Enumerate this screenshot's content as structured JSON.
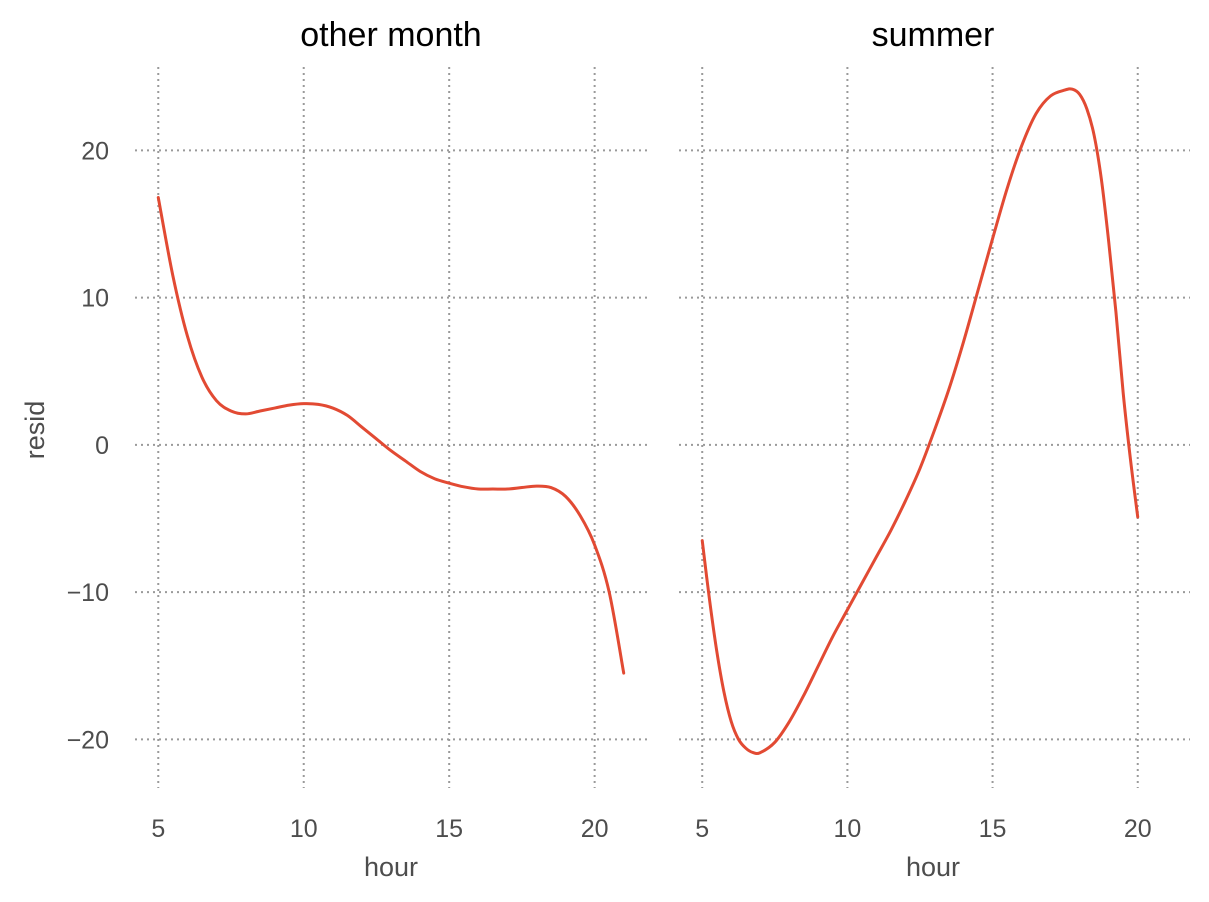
{
  "chart_data": [
    {
      "type": "line",
      "title": "other month",
      "xlabel": "hour",
      "ylabel": "resid",
      "xlim": [
        4.2,
        21.8
      ],
      "ylim": [
        -23.1,
        26.0
      ],
      "xticks": [
        5,
        10,
        15,
        20
      ],
      "yticks": [
        -20,
        -10,
        0,
        10,
        20
      ],
      "grid": true,
      "series": [
        {
          "color": "#e24a33",
          "x": [
            5,
            5.5,
            6,
            6.5,
            7,
            7.5,
            8,
            8.5,
            9,
            9.5,
            10,
            10.5,
            11,
            11.5,
            12,
            12.5,
            13,
            13.5,
            14,
            14.5,
            15,
            15.5,
            16,
            16.5,
            17,
            17.5,
            18,
            18.5,
            19,
            19.5,
            20,
            20.5,
            21
          ],
          "y": [
            16.8,
            11.5,
            7.4,
            4.6,
            3.0,
            2.3,
            2.1,
            2.3,
            2.5,
            2.7,
            2.8,
            2.75,
            2.5,
            2.0,
            1.2,
            0.4,
            -0.4,
            -1.1,
            -1.8,
            -2.3,
            -2.6,
            -2.85,
            -3.0,
            -3.0,
            -3.0,
            -2.9,
            -2.8,
            -2.9,
            -3.5,
            -4.8,
            -6.8,
            -10.0,
            -15.5
          ]
        }
      ]
    },
    {
      "type": "line",
      "title": "summer",
      "xlabel": "hour",
      "ylabel": "",
      "xlim": [
        4.2,
        21.8
      ],
      "ylim": [
        -23.1,
        26.0
      ],
      "xticks": [
        5,
        10,
        15,
        20
      ],
      "yticks": [
        -20,
        -10,
        0,
        10,
        20
      ],
      "grid": true,
      "series": [
        {
          "color": "#e24a33",
          "x": [
            5,
            5.25,
            5.5,
            5.75,
            6,
            6.25,
            6.5,
            6.75,
            7,
            7.5,
            8,
            8.5,
            9,
            9.5,
            10,
            10.5,
            11,
            11.5,
            12,
            12.5,
            13,
            13.5,
            14,
            14.5,
            15,
            15.5,
            16,
            16.5,
            17,
            17.5,
            17.75,
            18,
            18.25,
            18.5,
            18.75,
            19,
            19.25,
            19.5,
            19.75,
            20
          ],
          "y": [
            -6.5,
            -10.5,
            -14.0,
            -16.8,
            -18.8,
            -20.0,
            -20.6,
            -20.9,
            -20.9,
            -20.2,
            -18.8,
            -17.0,
            -15.0,
            -13.0,
            -11.2,
            -9.4,
            -7.6,
            -5.8,
            -3.8,
            -1.6,
            1.0,
            3.8,
            7.0,
            10.5,
            14.0,
            17.4,
            20.3,
            22.5,
            23.7,
            24.1,
            24.15,
            23.8,
            22.8,
            21.0,
            18.0,
            13.8,
            9.0,
            3.5,
            -1.0,
            -4.9
          ]
        }
      ]
    }
  ]
}
